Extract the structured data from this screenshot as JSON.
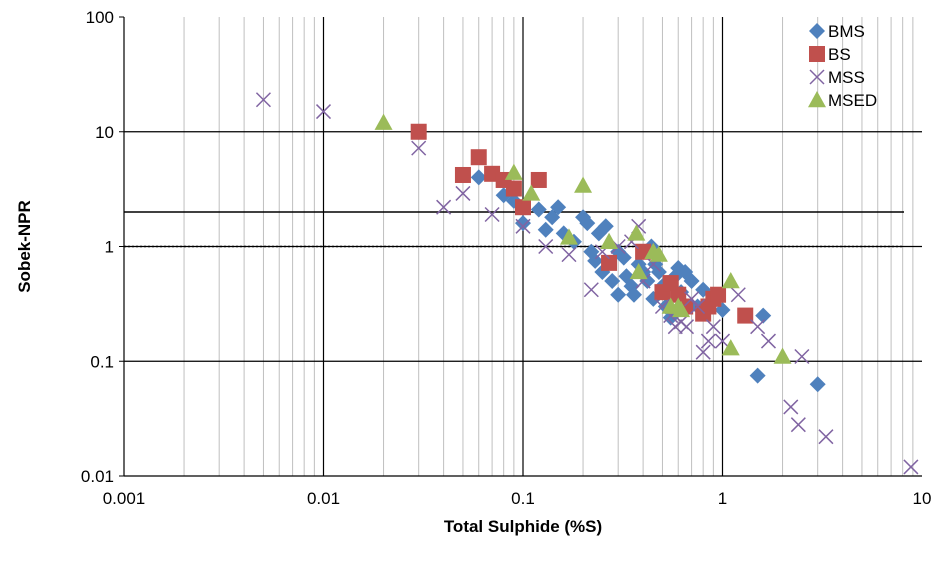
{
  "chart_data": {
    "type": "scatter",
    "title": "",
    "xlabel": "Total Sulphide (%S)",
    "ylabel": "Sobek-NPR",
    "x_scale": "log",
    "y_scale": "log",
    "xlim": [
      0.001,
      10
    ],
    "ylim": [
      0.01,
      100
    ],
    "x_tick_labels": [
      "0.001",
      "0.01",
      "0.1",
      "1",
      "10"
    ],
    "y_tick_labels": [
      "0.01",
      "0.1",
      "1",
      "10",
      "100"
    ],
    "grid": "vertical minor and major lines on x; major lines at decades on y",
    "legend_position": "top-right",
    "reference_lines": [
      {
        "y": 2,
        "style": "solid"
      },
      {
        "y": 1,
        "style": "dotted"
      }
    ],
    "series": [
      {
        "name": "BMS",
        "marker": "diamond",
        "color": "#4F81BD",
        "points": [
          [
            0.06,
            4.0
          ],
          [
            0.08,
            2.8
          ],
          [
            0.09,
            2.5
          ],
          [
            0.1,
            1.6
          ],
          [
            0.12,
            2.1
          ],
          [
            0.13,
            1.4
          ],
          [
            0.14,
            1.8
          ],
          [
            0.15,
            2.2
          ],
          [
            0.16,
            1.3
          ],
          [
            0.18,
            1.1
          ],
          [
            0.2,
            1.8
          ],
          [
            0.21,
            1.6
          ],
          [
            0.22,
            0.9
          ],
          [
            0.23,
            0.75
          ],
          [
            0.24,
            1.3
          ],
          [
            0.25,
            0.6
          ],
          [
            0.26,
            1.5
          ],
          [
            0.28,
            0.5
          ],
          [
            0.3,
            0.38
          ],
          [
            0.3,
            0.9
          ],
          [
            0.32,
            0.8
          ],
          [
            0.33,
            0.55
          ],
          [
            0.35,
            0.45
          ],
          [
            0.36,
            0.38
          ],
          [
            0.38,
            0.7
          ],
          [
            0.4,
            0.6
          ],
          [
            0.42,
            0.5
          ],
          [
            0.44,
            1.0
          ],
          [
            0.45,
            0.35
          ],
          [
            0.46,
            0.7
          ],
          [
            0.48,
            0.6
          ],
          [
            0.5,
            0.45
          ],
          [
            0.52,
            0.3
          ],
          [
            0.55,
            0.24
          ],
          [
            0.58,
            0.55
          ],
          [
            0.6,
            0.65
          ],
          [
            0.62,
            0.4
          ],
          [
            0.65,
            0.6
          ],
          [
            0.7,
            0.5
          ],
          [
            0.75,
            0.3
          ],
          [
            0.8,
            0.42
          ],
          [
            0.85,
            0.3
          ],
          [
            0.9,
            0.35
          ],
          [
            1.0,
            0.28
          ],
          [
            1.5,
            0.075
          ],
          [
            1.6,
            0.25
          ],
          [
            3.0,
            0.063
          ]
        ]
      },
      {
        "name": "BS",
        "marker": "square",
        "color": "#C0504D",
        "points": [
          [
            0.03,
            10
          ],
          [
            0.05,
            4.2
          ],
          [
            0.06,
            6.0
          ],
          [
            0.07,
            4.3
          ],
          [
            0.08,
            3.8
          ],
          [
            0.09,
            3.2
          ],
          [
            0.1,
            2.2
          ],
          [
            0.12,
            3.8
          ],
          [
            0.27,
            0.72
          ],
          [
            0.4,
            0.9
          ],
          [
            0.5,
            0.4
          ],
          [
            0.55,
            0.48
          ],
          [
            0.6,
            0.38
          ],
          [
            0.65,
            0.3
          ],
          [
            0.8,
            0.26
          ],
          [
            0.85,
            0.3
          ],
          [
            0.9,
            0.35
          ],
          [
            0.95,
            0.38
          ],
          [
            1.3,
            0.25
          ]
        ]
      },
      {
        "name": "MSS",
        "marker": "x",
        "color": "#8064A2",
        "points": [
          [
            0.005,
            19
          ],
          [
            0.01,
            15
          ],
          [
            0.03,
            7.2
          ],
          [
            0.04,
            2.2
          ],
          [
            0.05,
            2.9
          ],
          [
            0.07,
            1.9
          ],
          [
            0.1,
            1.5
          ],
          [
            0.13,
            1.0
          ],
          [
            0.17,
            0.85
          ],
          [
            0.22,
            0.42
          ],
          [
            0.25,
            0.9
          ],
          [
            0.3,
            1.0
          ],
          [
            0.35,
            1.1
          ],
          [
            0.38,
            1.5
          ],
          [
            0.4,
            0.5
          ],
          [
            0.45,
            0.7
          ],
          [
            0.5,
            0.3
          ],
          [
            0.55,
            0.25
          ],
          [
            0.58,
            0.2
          ],
          [
            0.62,
            0.22
          ],
          [
            0.66,
            0.2
          ],
          [
            0.7,
            0.35
          ],
          [
            0.75,
            0.3
          ],
          [
            0.8,
            0.12
          ],
          [
            0.85,
            0.15
          ],
          [
            0.9,
            0.2
          ],
          [
            1.0,
            0.15
          ],
          [
            1.2,
            0.38
          ],
          [
            1.5,
            0.2
          ],
          [
            1.7,
            0.15
          ],
          [
            2.2,
            0.04
          ],
          [
            2.4,
            0.028
          ],
          [
            2.5,
            0.11
          ],
          [
            3.3,
            0.022
          ],
          [
            8.8,
            0.012
          ]
        ]
      },
      {
        "name": "MSED",
        "marker": "triangle",
        "color": "#9BBB59",
        "points": [
          [
            0.02,
            12
          ],
          [
            0.09,
            4.4
          ],
          [
            0.11,
            2.9
          ],
          [
            0.17,
            1.2
          ],
          [
            0.2,
            3.4
          ],
          [
            0.27,
            1.1
          ],
          [
            0.37,
            1.3
          ],
          [
            0.38,
            0.6
          ],
          [
            0.45,
            0.9
          ],
          [
            0.48,
            0.85
          ],
          [
            0.55,
            0.3
          ],
          [
            0.6,
            0.3
          ],
          [
            0.62,
            0.28
          ],
          [
            1.1,
            0.5
          ],
          [
            1.1,
            0.13
          ],
          [
            2.0,
            0.11
          ]
        ]
      }
    ]
  }
}
